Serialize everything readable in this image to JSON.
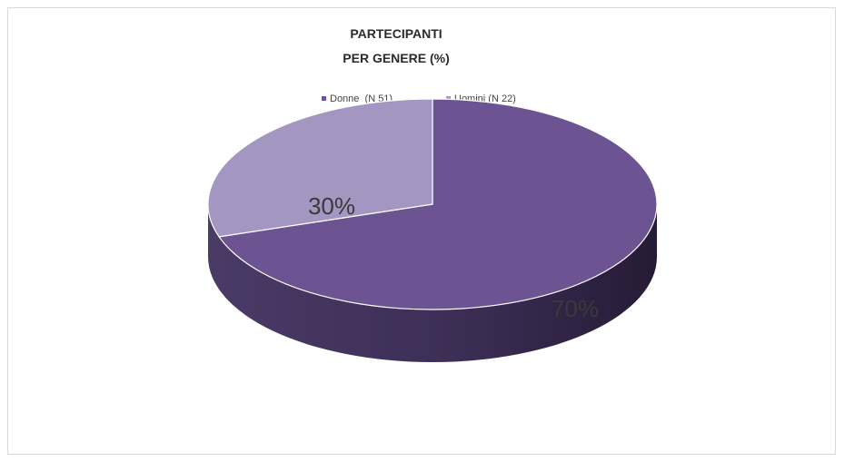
{
  "chart_data": {
    "type": "pie",
    "title_lines": [
      "PARTECIPANTI",
      "PER GENERE (%)"
    ],
    "series": [
      {
        "name": "Donne  (N 51)",
        "value": 70,
        "label": "70%",
        "color": "#6b5491"
      },
      {
        "name": "Uomini (N 22)",
        "value": 30,
        "label": "30%",
        "color": "#a396c0"
      }
    ],
    "legend_position": "top",
    "style": "3d-pie",
    "colors": {
      "donne_side": "#3d2e56",
      "uomini_side": "#7a6b99",
      "label_text": "#3a3a3a",
      "title_text": "#2b2b2b"
    }
  }
}
